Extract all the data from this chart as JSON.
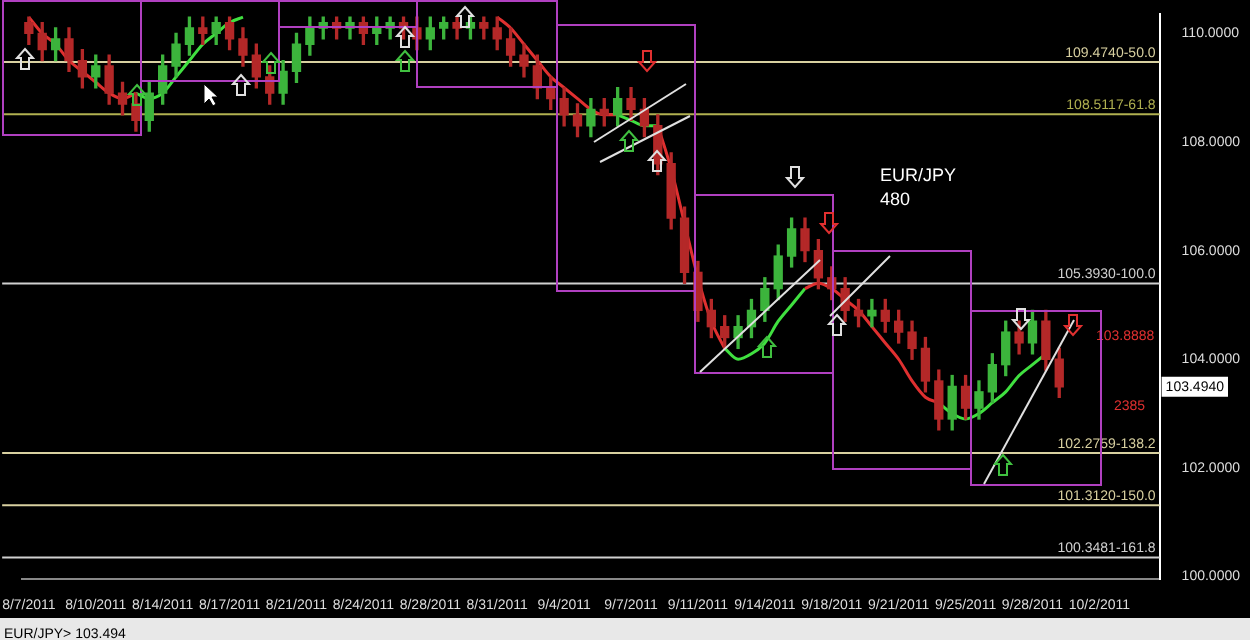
{
  "chart_data": {
    "type": "candlestick",
    "categories": [
      "8/7/2011",
      null,
      null,
      null,
      null,
      "8/10/2011",
      null,
      null,
      null,
      null,
      "8/14/2011",
      null,
      null,
      null,
      null,
      "8/17/2011",
      null,
      null,
      null,
      null,
      "8/21/2011",
      null,
      null,
      null,
      null,
      "8/24/2011",
      null,
      null,
      null,
      null,
      "8/28/2011",
      null,
      null,
      null,
      null,
      "8/31/2011",
      null,
      null,
      null,
      null,
      "9/4/2011",
      null,
      null,
      null,
      null,
      "9/7/2011",
      null,
      null,
      null,
      null,
      "9/11/2011",
      null,
      null,
      null,
      null,
      "9/14/2011",
      null,
      null,
      null,
      null,
      "9/18/2011",
      null,
      null,
      null,
      null,
      "9/21/2011",
      null,
      null,
      null,
      null,
      "9/25/2011",
      null,
      null,
      null,
      null,
      "9/28/2011",
      null,
      null,
      null,
      null,
      "10/2/2011",
      null,
      null,
      null,
      null
    ],
    "ohlc": [
      [
        110.2,
        110.3,
        109.8,
        110.0
      ],
      [
        110.0,
        110.2,
        109.5,
        109.7
      ],
      [
        109.7,
        110.1,
        109.5,
        109.9
      ],
      [
        109.9,
        110.1,
        109.3,
        109.5
      ],
      [
        109.5,
        109.7,
        109.0,
        109.2
      ],
      [
        109.2,
        109.6,
        109.0,
        109.4
      ],
      [
        109.4,
        109.6,
        108.7,
        108.9
      ],
      [
        108.9,
        109.1,
        108.5,
        108.7
      ],
      [
        108.7,
        108.9,
        108.2,
        108.4
      ],
      [
        108.4,
        109.1,
        108.2,
        108.9
      ],
      [
        108.9,
        109.6,
        108.7,
        109.4
      ],
      [
        109.4,
        110.0,
        109.2,
        109.8
      ],
      [
        109.8,
        110.3,
        109.6,
        110.1
      ],
      [
        110.1,
        110.3,
        109.8,
        110.0
      ],
      [
        110.0,
        110.3,
        109.8,
        110.2
      ],
      [
        110.2,
        110.3,
        109.7,
        109.9
      ],
      [
        109.9,
        110.1,
        109.4,
        109.6
      ],
      [
        109.6,
        109.8,
        109.0,
        109.2
      ],
      [
        109.2,
        109.4,
        108.7,
        108.9
      ],
      [
        108.9,
        109.5,
        108.7,
        109.3
      ],
      [
        109.3,
        110.0,
        109.1,
        109.8
      ],
      [
        109.8,
        110.3,
        109.6,
        110.1
      ],
      [
        110.1,
        110.3,
        109.9,
        110.2
      ],
      [
        110.2,
        110.3,
        109.9,
        110.1
      ],
      [
        110.1,
        110.3,
        109.9,
        110.2
      ],
      [
        110.2,
        110.3,
        109.8,
        110.0
      ],
      [
        110.0,
        110.3,
        109.8,
        110.1
      ],
      [
        110.1,
        110.3,
        109.9,
        110.2
      ],
      [
        110.2,
        110.3,
        109.9,
        110.1
      ],
      [
        110.1,
        110.3,
        109.7,
        109.9
      ],
      [
        109.9,
        110.3,
        109.7,
        110.1
      ],
      [
        110.1,
        110.3,
        109.9,
        110.2
      ],
      [
        110.2,
        110.3,
        109.9,
        110.1
      ],
      [
        110.1,
        110.3,
        109.9,
        110.2
      ],
      [
        110.2,
        110.3,
        109.9,
        110.1
      ],
      [
        110.1,
        110.3,
        109.7,
        109.9
      ],
      [
        109.9,
        110.1,
        109.4,
        109.6
      ],
      [
        109.6,
        109.8,
        109.2,
        109.4
      ],
      [
        109.4,
        109.6,
        108.8,
        109.0
      ],
      [
        109.0,
        109.2,
        108.6,
        108.8
      ],
      [
        108.8,
        109.0,
        108.3,
        108.5
      ],
      [
        108.5,
        108.7,
        108.1,
        108.3
      ],
      [
        108.3,
        108.8,
        108.1,
        108.6
      ],
      [
        108.6,
        108.8,
        108.3,
        108.5
      ],
      [
        108.5,
        109.0,
        108.3,
        108.8
      ],
      [
        108.8,
        109.0,
        108.4,
        108.6
      ],
      [
        108.6,
        108.8,
        108.1,
        108.3
      ],
      [
        108.3,
        108.5,
        107.4,
        107.6
      ],
      [
        107.6,
        107.8,
        106.4,
        106.6
      ],
      [
        106.6,
        106.8,
        105.4,
        105.6
      ],
      [
        105.6,
        105.8,
        104.7,
        104.9
      ],
      [
        104.9,
        105.1,
        104.4,
        104.6
      ],
      [
        104.6,
        104.8,
        104.2,
        104.4
      ],
      [
        104.4,
        104.8,
        104.2,
        104.6
      ],
      [
        104.6,
        105.1,
        104.4,
        104.9
      ],
      [
        104.9,
        105.5,
        104.7,
        105.3
      ],
      [
        105.3,
        106.1,
        105.1,
        105.9
      ],
      [
        105.9,
        106.6,
        105.7,
        106.4
      ],
      [
        106.4,
        106.6,
        105.8,
        106.0
      ],
      [
        106.0,
        106.2,
        105.3,
        105.5
      ],
      [
        105.5,
        105.7,
        105.1,
        105.3
      ],
      [
        105.3,
        105.5,
        104.7,
        104.9
      ],
      [
        104.9,
        105.1,
        104.6,
        104.8
      ],
      [
        104.8,
        105.1,
        104.6,
        104.9
      ],
      [
        104.9,
        105.1,
        104.5,
        104.7
      ],
      [
        104.7,
        104.9,
        104.3,
        104.5
      ],
      [
        104.5,
        104.7,
        104.0,
        104.2
      ],
      [
        104.2,
        104.4,
        103.4,
        103.6
      ],
      [
        103.6,
        103.8,
        102.7,
        102.9
      ],
      [
        102.9,
        103.7,
        102.7,
        103.5
      ],
      [
        103.5,
        103.7,
        102.9,
        103.1
      ],
      [
        103.1,
        103.6,
        102.9,
        103.4
      ],
      [
        103.4,
        104.1,
        103.2,
        103.9
      ],
      [
        103.9,
        104.7,
        103.7,
        104.5
      ],
      [
        104.5,
        104.7,
        104.1,
        104.3
      ],
      [
        104.3,
        104.9,
        104.1,
        104.7
      ],
      [
        104.7,
        104.9,
        103.8,
        104.0
      ],
      [
        104.0,
        104.2,
        103.3,
        103.494
      ],
      null,
      null,
      null,
      null,
      null,
      null,
      null
    ],
    "colors": [
      "#b42828",
      "#b42828",
      "#3cb43c",
      "#b42828",
      "#b42828",
      "#3cb43c",
      "#b42828",
      "#b42828",
      "#b42828",
      "#3cb43c",
      "#3cb43c",
      "#3cb43c",
      "#3cb43c",
      "#b42828",
      "#3cb43c",
      "#b42828",
      "#b42828",
      "#b42828",
      "#b42828",
      "#3cb43c",
      "#3cb43c",
      "#3cb43c",
      "#3cb43c",
      "#b42828",
      "#3cb43c",
      "#b42828",
      "#3cb43c",
      "#3cb43c",
      "#b42828",
      "#b42828",
      "#3cb43c",
      "#3cb43c",
      "#b42828",
      "#3cb43c",
      "#b42828",
      "#b42828",
      "#b42828",
      "#b42828",
      "#b42828",
      "#b42828",
      "#b42828",
      "#b42828",
      "#3cb43c",
      "#b42828",
      "#3cb43c",
      "#b42828",
      "#b42828",
      "#b42828",
      "#b42828",
      "#b42828",
      "#b42828",
      "#b42828",
      "#b42828",
      "#3cb43c",
      "#3cb43c",
      "#3cb43c",
      "#3cb43c",
      "#3cb43c",
      "#b42828",
      "#b42828",
      "#b42828",
      "#b42828",
      "#b42828",
      "#3cb43c",
      "#b42828",
      "#b42828",
      "#b42828",
      "#b42828",
      "#b42828",
      "#3cb43c",
      "#b42828",
      "#3cb43c",
      "#3cb43c",
      "#3cb43c",
      "#b42828",
      "#3cb43c",
      "#b42828",
      "#b42828",
      null,
      null,
      null,
      null,
      null,
      null,
      null
    ],
    "series": [
      {
        "type": "line",
        "color": "#e03030",
        "values": [
          110.3,
          110.0,
          109.8,
          109.5,
          109.3,
          109.1,
          108.9,
          108.8,
          108.9,
          null,
          null,
          null,
          null,
          null,
          null,
          null,
          null,
          null,
          null,
          null,
          null,
          null,
          null,
          null,
          null,
          null,
          null,
          null,
          null,
          null,
          null,
          null,
          null,
          null,
          null,
          110.3,
          110.1,
          109.8,
          109.5,
          109.2,
          109.0,
          108.8,
          108.6,
          108.5,
          108.5,
          null,
          null,
          108.3,
          107.5,
          106.5,
          105.5,
          104.7,
          104.2,
          null,
          null,
          null,
          null,
          null,
          105.3,
          105.4,
          105.3,
          105.1,
          104.9,
          104.6,
          104.3,
          104.0,
          103.6,
          103.3,
          103.2,
          null,
          null,
          null,
          null,
          null,
          null,
          null,
          null,
          null,
          null,
          null,
          null,
          null,
          null,
          null,
          null
        ]
      },
      {
        "type": "line",
        "color": "#40e040",
        "values": [
          null,
          null,
          null,
          null,
          null,
          null,
          null,
          null,
          108.9,
          108.8,
          108.9,
          109.2,
          109.5,
          109.8,
          110.0,
          110.2,
          110.3,
          null,
          null,
          null,
          null,
          null,
          null,
          null,
          null,
          null,
          null,
          null,
          null,
          null,
          null,
          null,
          null,
          null,
          null,
          null,
          null,
          null,
          null,
          null,
          null,
          null,
          null,
          null,
          108.5,
          108.4,
          108.3,
          108.3,
          null,
          null,
          null,
          null,
          104.2,
          104.0,
          104.1,
          104.3,
          104.7,
          105.0,
          105.3,
          null,
          null,
          null,
          null,
          null,
          null,
          null,
          null,
          null,
          103.2,
          103.0,
          102.9,
          103.0,
          103.2,
          103.4,
          103.7,
          103.9,
          104.1,
          null,
          null,
          null,
          null,
          null,
          null,
          null,
          null
        ]
      }
    ],
    "ylim": [
      99.95,
      110.35
    ],
    "yticks": [
      {
        "value": 100,
        "label": "100.0000"
      },
      {
        "value": 102,
        "label": "102.0000"
      },
      {
        "value": 104,
        "label": "104.0000"
      },
      {
        "value": 106,
        "label": "106.0000"
      },
      {
        "value": 108,
        "label": "108.0000"
      },
      {
        "value": 110,
        "label": "110.0000"
      }
    ],
    "ref_lines": [
      {
        "axis": "y",
        "value": 109.474,
        "label": "109.4740-50.0",
        "color": "#d8d0a0"
      },
      {
        "axis": "y",
        "value": 108.5117,
        "label": "108.5117-61.8",
        "color": "#b0b050"
      },
      {
        "axis": "y",
        "value": 105.393,
        "label": "105.3930-100.0",
        "color": "#d0d0d0"
      },
      {
        "axis": "y",
        "value": 102.2759,
        "label": "102.2759-138.2",
        "color": "#d8d0a0"
      },
      {
        "axis": "y",
        "value": 101.312,
        "label": "101.3120-150.0",
        "color": "#d8d0a0"
      },
      {
        "axis": "y",
        "value": 100.3481,
        "label": "100.3481-161.8",
        "color": "#d0d0d0"
      }
    ],
    "annotations": [
      "EUR/JPY",
      "480",
      "103.8888",
      "2385",
      {
        "text": "103.4940",
        "y": 103.494
      },
      "EUR/JPY> 103.494"
    ],
    "legend": false
  }
}
